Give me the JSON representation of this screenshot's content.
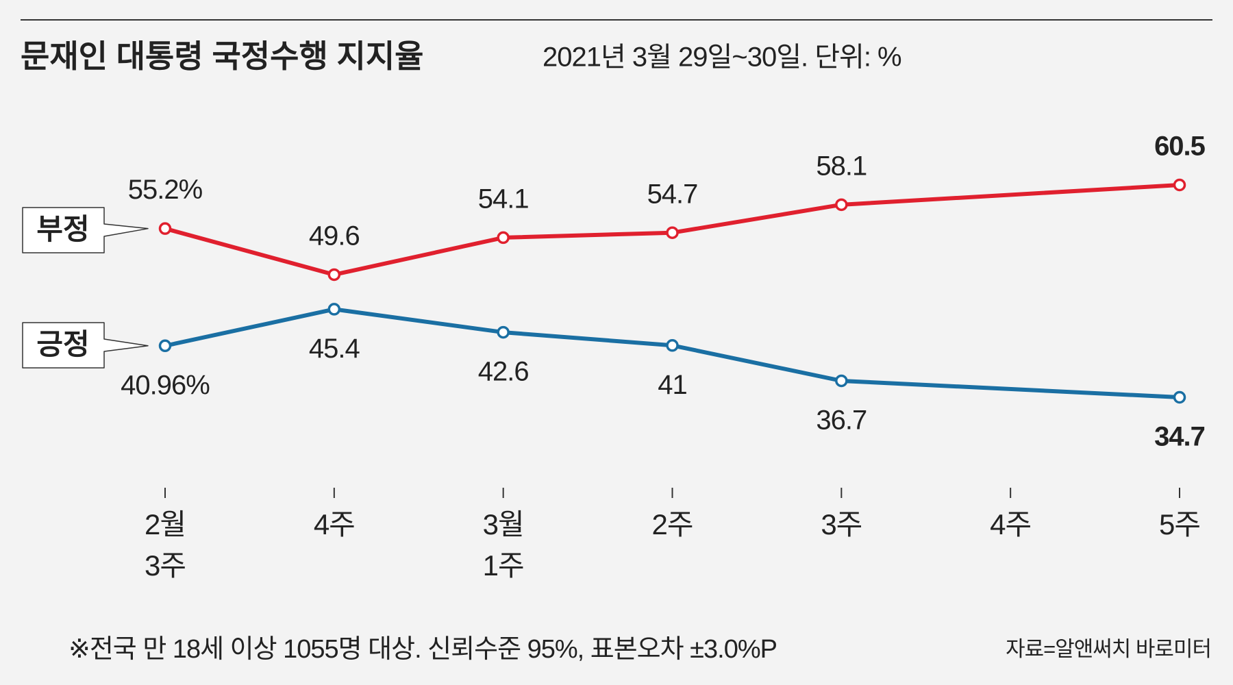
{
  "chart_data": {
    "type": "line",
    "title": "문재인 대통령 국정수행 지지율",
    "subtitle": "2021년 3월 29일~30일. 단위: %",
    "categories": [
      "2월\n3주",
      "4주",
      "3월\n1주",
      "2주",
      "3주",
      "4주",
      "5주"
    ],
    "series": [
      {
        "name": "부정",
        "color": "#e0202e",
        "values": [
          55.2,
          49.6,
          54.1,
          54.7,
          58.1,
          null,
          60.5
        ],
        "value_labels": [
          "55.2%",
          "49.6",
          "54.1",
          "54.7",
          "58.1",
          null,
          "60.5"
        ],
        "label_position": "above"
      },
      {
        "name": "긍정",
        "color": "#1a6fa3",
        "values": [
          40.96,
          45.4,
          42.6,
          41,
          36.7,
          null,
          34.7
        ],
        "value_labels": [
          "40.96%",
          "45.4",
          "42.6",
          "41",
          "36.7",
          null,
          "34.7"
        ],
        "label_position": "below"
      }
    ],
    "span_gaps": true,
    "note": "※전국 만 18세 이상 1055명 대상. 신뢰수준 95%, 표본오차 ±3.0%P",
    "source": "자료=알앤써치 바로미터"
  }
}
